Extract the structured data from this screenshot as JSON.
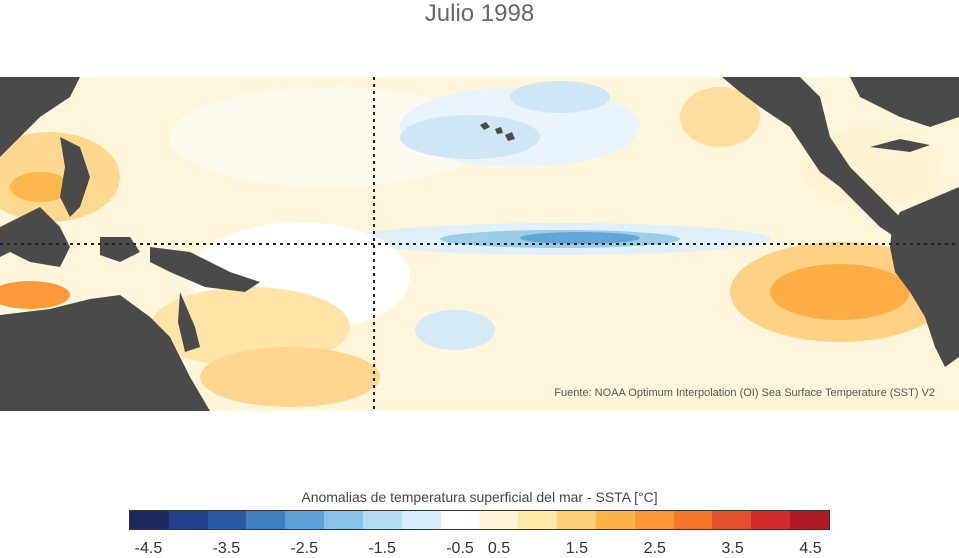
{
  "title": "Julio 1998",
  "source_note": "Fuente: NOAA Optimum Interpolation (OI) Sea Surface Temperature (SST) V2",
  "colorbar": {
    "title": "Anomalias de temperatura superficial del mar - SSTA  [°C]",
    "colors": [
      "#1a2a5e",
      "#23418a",
      "#2b5aa5",
      "#3f7fc0",
      "#5ea1d8",
      "#88c1ea",
      "#b3dcf5",
      "#d7ecf9",
      "#ffffff",
      "#fff5d9",
      "#ffe7a8",
      "#ffd176",
      "#ffb347",
      "#ff9634",
      "#f5762a",
      "#e5512c",
      "#d02d2a",
      "#b01a24"
    ],
    "tick_labels": [
      "-4.5",
      "-3.5",
      "-2.5",
      "-1.5",
      "-0.5",
      "0.5",
      "1.5",
      "2.5",
      "3.5",
      "4.5"
    ]
  },
  "map": {
    "land_color": "#4a4a4a",
    "ocean_base_color": "#fff8e2"
  }
}
